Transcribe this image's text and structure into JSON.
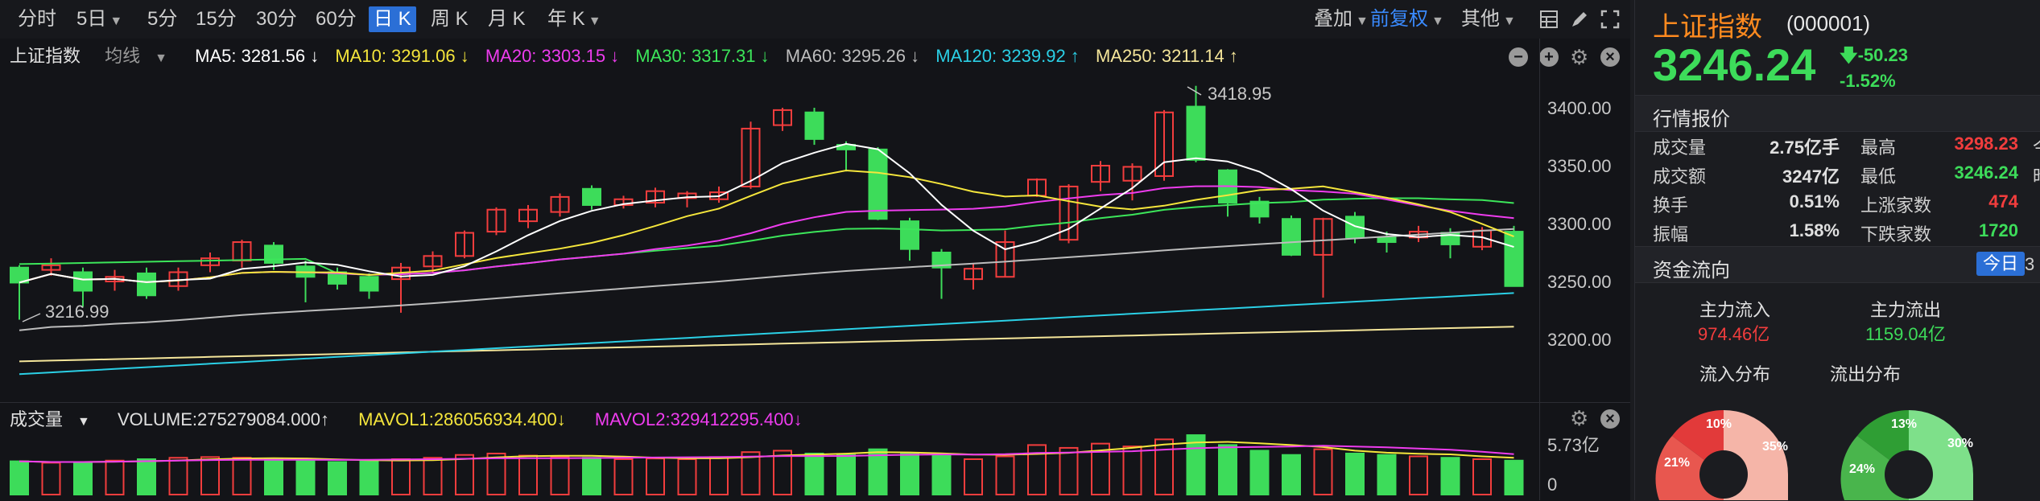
{
  "toolbar": {
    "periods": [
      "分时",
      "5日",
      "5分",
      "15分",
      "30分",
      "60分",
      "日 K",
      "周 K",
      "月 K",
      "年 K"
    ],
    "active_period": "日 K",
    "overlay_label": "叠加",
    "adjust_label": "前复权",
    "other_label": "其他"
  },
  "price_info": {
    "name": "上证指数",
    "ma_type": "均线",
    "ma5": "MA5: 3281.56 ↓",
    "ma10": "MA10: 3291.06 ↓",
    "ma20": "MA20: 3303.15 ↓",
    "ma30": "MA30: 3317.31 ↓",
    "ma60": "MA60: 3295.26 ↓",
    "ma120": "MA120: 3239.92 ↑",
    "ma250": "MA250: 3211.14 ↑"
  },
  "price_axis": [
    "3400.00",
    "3350.00",
    "3300.00",
    "3250.00",
    "3200.00"
  ],
  "annotations": {
    "high": "3418.95",
    "low": "3216.99"
  },
  "volume_info": {
    "name": "成交量",
    "volume": "VOLUME:275279084.000↑",
    "mavol1": "MAVOL1:286056934.400↓",
    "mavol2": "MAVOL2:329412295.400↓"
  },
  "volume_axis": {
    "top": "5.73亿",
    "bottom": "0"
  },
  "colors": {
    "up": "#f23d3d",
    "down": "#3ddc5a",
    "ma5": "#ffffff",
    "ma10": "#f5e63c",
    "ma20": "#ee3cee",
    "ma30": "#3ce65a",
    "ma60": "#bdbdbd",
    "ma120": "#2bd0e6",
    "ma250": "#f5e69a"
  },
  "candles": [
    {
      "o": 3262,
      "c": 3249,
      "h": 3264,
      "l": 3217
    },
    {
      "o": 3260,
      "c": 3264,
      "h": 3270,
      "l": 3255
    },
    {
      "o": 3258,
      "c": 3242,
      "h": 3262,
      "l": 3228
    },
    {
      "o": 3250,
      "c": 3254,
      "h": 3260,
      "l": 3242
    },
    {
      "o": 3257,
      "c": 3238,
      "h": 3262,
      "l": 3235
    },
    {
      "o": 3246,
      "c": 3258,
      "h": 3262,
      "l": 3242
    },
    {
      "o": 3264,
      "c": 3270,
      "h": 3275,
      "l": 3258
    },
    {
      "o": 3268,
      "c": 3284,
      "h": 3286,
      "l": 3262
    },
    {
      "o": 3281,
      "c": 3266,
      "h": 3284,
      "l": 3260
    },
    {
      "o": 3263,
      "c": 3254,
      "h": 3268,
      "l": 3232
    },
    {
      "o": 3258,
      "c": 3248,
      "h": 3262,
      "l": 3243
    },
    {
      "o": 3254,
      "c": 3242,
      "h": 3257,
      "l": 3235
    },
    {
      "o": 3252,
      "c": 3262,
      "h": 3266,
      "l": 3223
    },
    {
      "o": 3263,
      "c": 3272,
      "h": 3276,
      "l": 3258
    },
    {
      "o": 3272,
      "c": 3292,
      "h": 3294,
      "l": 3270
    },
    {
      "o": 3293,
      "c": 3312,
      "h": 3314,
      "l": 3290
    },
    {
      "o": 3302,
      "c": 3312,
      "h": 3316,
      "l": 3296
    },
    {
      "o": 3310,
      "c": 3323,
      "h": 3326,
      "l": 3306
    },
    {
      "o": 3330,
      "c": 3316,
      "h": 3333,
      "l": 3312
    },
    {
      "o": 3316,
      "c": 3321,
      "h": 3324,
      "l": 3313
    },
    {
      "o": 3318,
      "c": 3328,
      "h": 3331,
      "l": 3314
    },
    {
      "o": 3322,
      "c": 3326,
      "h": 3328,
      "l": 3314
    },
    {
      "o": 3321,
      "c": 3327,
      "h": 3332,
      "l": 3318
    },
    {
      "o": 3332,
      "c": 3382,
      "h": 3388,
      "l": 3330
    },
    {
      "o": 3385,
      "c": 3398,
      "h": 3400,
      "l": 3380
    },
    {
      "o": 3396,
      "c": 3373,
      "h": 3400,
      "l": 3368
    },
    {
      "o": 3368,
      "c": 3364,
      "h": 3371,
      "l": 3345
    },
    {
      "o": 3364,
      "c": 3304,
      "h": 3366,
      "l": 3303
    },
    {
      "o": 3302,
      "c": 3278,
      "h": 3305,
      "l": 3268
    },
    {
      "o": 3275,
      "c": 3262,
      "h": 3278,
      "l": 3235
    },
    {
      "o": 3252,
      "c": 3261,
      "h": 3266,
      "l": 3243
    },
    {
      "o": 3254,
      "c": 3284,
      "h": 3294,
      "l": 3254
    },
    {
      "o": 3324,
      "c": 3338,
      "h": 3339,
      "l": 3323
    },
    {
      "o": 3286,
      "c": 3332,
      "h": 3334,
      "l": 3283
    },
    {
      "o": 3336,
      "c": 3350,
      "h": 3354,
      "l": 3328
    },
    {
      "o": 3337,
      "c": 3349,
      "h": 3352,
      "l": 3320
    },
    {
      "o": 3341,
      "c": 3396,
      "h": 3398,
      "l": 3337
    },
    {
      "o": 3401,
      "c": 3355,
      "h": 3418.95,
      "l": 3353
    },
    {
      "o": 3346,
      "c": 3318,
      "h": 3347,
      "l": 3306
    },
    {
      "o": 3319,
      "c": 3306,
      "h": 3323,
      "l": 3300
    },
    {
      "o": 3304,
      "c": 3273,
      "h": 3307,
      "l": 3272
    },
    {
      "o": 3273,
      "c": 3304,
      "h": 3305,
      "l": 3236
    },
    {
      "o": 3306,
      "c": 3288,
      "h": 3310,
      "l": 3283
    },
    {
      "o": 3288,
      "c": 3284,
      "h": 3293,
      "l": 3275
    },
    {
      "o": 3288,
      "c": 3293,
      "h": 3298,
      "l": 3284
    },
    {
      "o": 3292,
      "c": 3282,
      "h": 3296,
      "l": 3270
    },
    {
      "o": 3280,
      "c": 3294,
      "h": 3297,
      "l": 3277
    },
    {
      "o": 3293,
      "c": 3246,
      "h": 3298,
      "l": 3246
    }
  ],
  "volumes": [
    0.47,
    0.45,
    0.46,
    0.48,
    0.5,
    0.52,
    0.53,
    0.52,
    0.5,
    0.48,
    0.46,
    0.47,
    0.5,
    0.52,
    0.56,
    0.58,
    0.55,
    0.53,
    0.52,
    0.5,
    0.51,
    0.5,
    0.53,
    0.6,
    0.62,
    0.58,
    0.56,
    0.64,
    0.58,
    0.55,
    0.5,
    0.54,
    0.7,
    0.66,
    0.72,
    0.68,
    0.78,
    0.84,
    0.7,
    0.62,
    0.56,
    0.64,
    0.58,
    0.56,
    0.54,
    0.52,
    0.5,
    0.48
  ],
  "quote": {
    "name": "上证指数",
    "code": "(000001)",
    "price": "3246.24",
    "change": "-50.23",
    "change_pct": "-1.52%",
    "section_title": "行情报价",
    "rows": [
      {
        "l1": "成交量",
        "v1": "2.75亿手",
        "l2": "最高",
        "v2": "3298.23",
        "c2": "#f23d3d",
        "l3": "今开"
      },
      {
        "l1": "成交额",
        "v1": "3247亿",
        "l2": "最低",
        "v2": "3246.24",
        "c2": "#3ddc5a",
        "l3": "昨收"
      },
      {
        "l1": "换手",
        "v1": "0.51%",
        "l2": "上涨家数",
        "v2": "474",
        "c2": "#f23d3d",
        "l3": ""
      },
      {
        "l1": "振幅",
        "v1": "1.58%",
        "l2": "下跌家数",
        "v2": "1720",
        "c2": "#3ddc5a",
        "l3": ""
      }
    ]
  },
  "fund_flow": {
    "title": "资金流向",
    "today_btn": "今日",
    "inflow_label": "主力流入",
    "inflow_value": "974.46亿",
    "outflow_label": "主力流出",
    "outflow_value": "1159.04亿",
    "in_dist_label": "流入分布",
    "out_dist_label": "流出分布",
    "in_pcts": [
      "10%",
      "21%",
      "35%"
    ],
    "out_pcts": [
      "13%",
      "24%",
      "30%"
    ]
  }
}
